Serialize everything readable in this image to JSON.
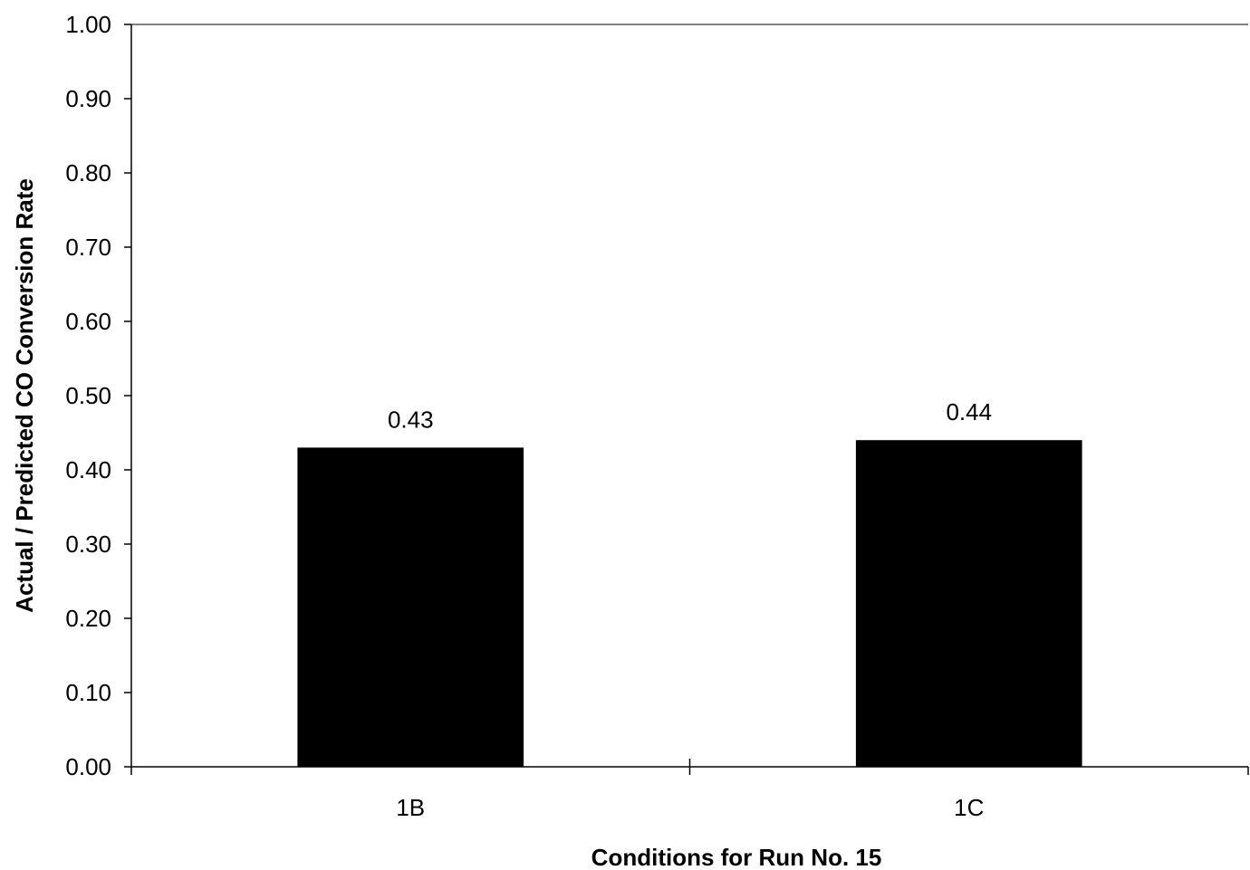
{
  "chart_data": {
    "type": "bar",
    "title": "",
    "xlabel": "Conditions for Run No. 15",
    "ylabel": "Actual / Predicted CO Conversion Rate",
    "categories": [
      "1B",
      "1C"
    ],
    "values": [
      0.43,
      0.44
    ],
    "data_labels": [
      "0.43",
      "0.44"
    ],
    "ylim": [
      0,
      1
    ],
    "yticks": [
      0,
      0.1,
      0.2,
      0.3,
      0.4,
      0.5,
      0.6,
      0.7,
      0.8,
      0.9,
      1.0
    ],
    "ytick_labels": [
      "0.00",
      "0.10",
      "0.20",
      "0.30",
      "0.40",
      "0.50",
      "0.60",
      "0.70",
      "0.80",
      "0.90",
      "1.00"
    ],
    "grid": false,
    "legend": "none",
    "bar_color": "#000000",
    "background": "#ffffff"
  }
}
